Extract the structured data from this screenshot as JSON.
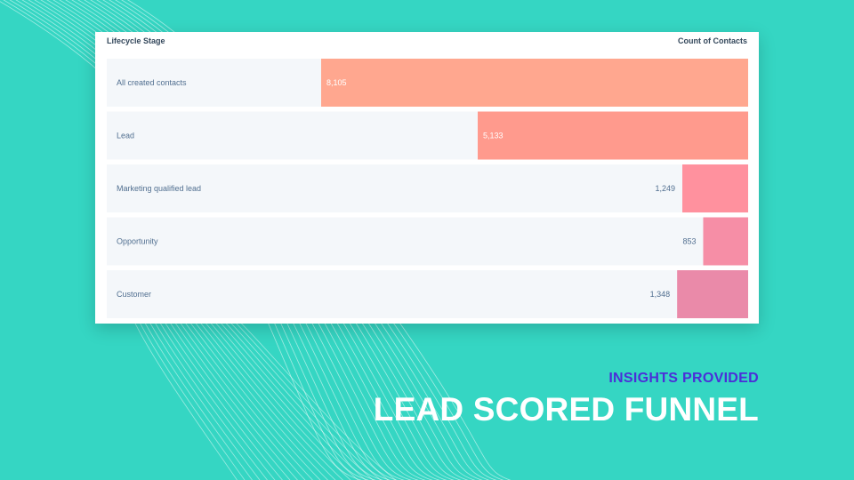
{
  "header": {
    "stage_label": "Lifecycle Stage",
    "count_label": "Count of Contacts"
  },
  "chart_data": {
    "type": "bar",
    "orientation": "horizontal",
    "xlabel": "Count of Contacts",
    "ylabel": "Lifecycle Stage",
    "categories": [
      "All created contacts",
      "Lead",
      "Marketing qualified lead",
      "Opportunity",
      "Customer"
    ],
    "values": [
      8105,
      5133,
      1249,
      853,
      1348
    ],
    "value_labels": [
      "8,105",
      "5,133",
      "1,249",
      "853",
      "1,348"
    ],
    "bar_colors": [
      "#ffa78f",
      "#ff9a8d",
      "#ff919e",
      "#f68ea6",
      "#ea8aa9"
    ],
    "row_background": "#f4f7fa",
    "bar_alignment": "right"
  },
  "footer": {
    "subtitle": "INSIGHTS PROVIDED",
    "title": "LEAD SCORED FUNNEL"
  },
  "colors": {
    "background": "#35d6c3",
    "subtitle": "#4b2ed8",
    "title": "#ffffff"
  }
}
